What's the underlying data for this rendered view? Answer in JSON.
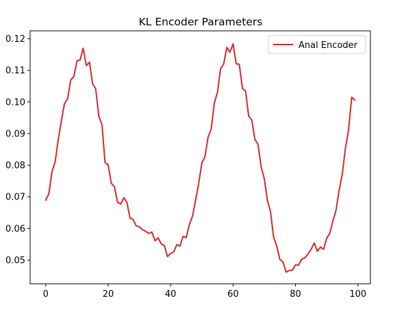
{
  "chart_data": {
    "type": "line",
    "title": "KL Encoder Parameters",
    "xlabel": "",
    "ylabel": "",
    "xlim": [
      -5,
      104
    ],
    "ylim": [
      0.0425,
      0.1225
    ],
    "xticks": [
      0,
      20,
      40,
      60,
      80,
      100
    ],
    "xtick_labels": [
      "0",
      "20",
      "40",
      "60",
      "80",
      "100"
    ],
    "yticks": [
      0.05,
      0.06,
      0.07,
      0.08,
      0.09,
      0.1,
      0.11,
      0.12
    ],
    "ytick_labels": [
      "0.05",
      "0.06",
      "0.07",
      "0.08",
      "0.09",
      "0.10",
      "0.11",
      "0.12"
    ],
    "grid": false,
    "legend": {
      "position": "top-right"
    },
    "series": [
      {
        "name": "Anal Encoder",
        "color": "#d62728",
        "x": [
          0,
          1,
          2,
          3,
          4,
          5,
          6,
          7,
          8,
          9,
          10,
          11,
          12,
          13,
          14,
          15,
          16,
          17,
          18,
          19,
          20,
          21,
          22,
          23,
          24,
          25,
          26,
          27,
          28,
          29,
          30,
          31,
          32,
          33,
          34,
          35,
          36,
          37,
          38,
          39,
          40,
          41,
          42,
          43,
          44,
          45,
          46,
          47,
          48,
          49,
          50,
          51,
          52,
          53,
          54,
          55,
          56,
          57,
          58,
          59,
          60,
          61,
          62,
          63,
          64,
          65,
          66,
          67,
          68,
          69,
          70,
          71,
          72,
          73,
          74,
          75,
          76,
          77,
          78,
          79,
          80,
          81,
          82,
          83,
          84,
          85,
          86,
          87,
          88,
          89,
          90,
          91,
          92,
          93,
          94,
          95,
          96,
          97,
          98,
          99
        ],
        "values": [
          0.069,
          0.071,
          0.078,
          0.081,
          0.088,
          0.094,
          0.0995,
          0.101,
          0.107,
          0.108,
          0.113,
          0.1133,
          0.117,
          0.1115,
          0.1126,
          0.1058,
          0.1042,
          0.0955,
          0.0929,
          0.0809,
          0.0801,
          0.0743,
          0.0732,
          0.0683,
          0.0677,
          0.0697,
          0.0683,
          0.0633,
          0.0628,
          0.0608,
          0.0605,
          0.0596,
          0.0591,
          0.0584,
          0.0589,
          0.0561,
          0.0571,
          0.0551,
          0.0546,
          0.0511,
          0.0521,
          0.0526,
          0.0549,
          0.0544,
          0.0575,
          0.0571,
          0.0612,
          0.0638,
          0.069,
          0.0743,
          0.0807,
          0.0827,
          0.0889,
          0.0914,
          0.0997,
          0.103,
          0.1105,
          0.112,
          0.1173,
          0.1157,
          0.1184,
          0.1121,
          0.1119,
          0.1043,
          0.1035,
          0.0956,
          0.0943,
          0.0882,
          0.0866,
          0.0795,
          0.0758,
          0.0689,
          0.0653,
          0.0572,
          0.0544,
          0.0502,
          0.0494,
          0.0462,
          0.0467,
          0.0468,
          0.0485,
          0.0484,
          0.0503,
          0.0507,
          0.0519,
          0.0534,
          0.0554,
          0.0528,
          0.0541,
          0.0534,
          0.0569,
          0.0585,
          0.0624,
          0.0658,
          0.0722,
          0.0772,
          0.0854,
          0.0912,
          0.1015,
          0.1006
        ]
      }
    ]
  }
}
